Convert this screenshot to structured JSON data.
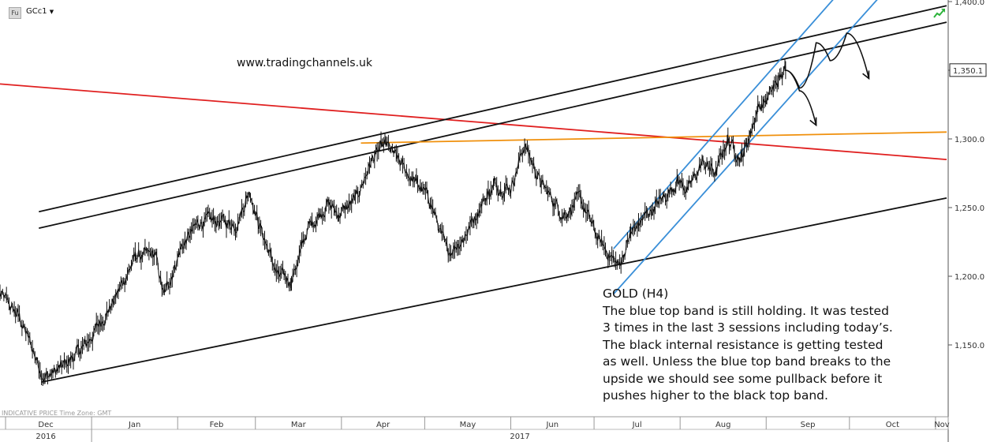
{
  "header": {
    "symbol_type": "Fu",
    "symbol": "GCc1",
    "symbol_menu_icon": "caret-down-icon",
    "status_icon": "green-arrow-icon"
  },
  "watermark": "www.tradingchannels.uk",
  "footer_note": "INDICATIVE PRICE   Time Zone: GMT",
  "annotation": {
    "title": "GOLD (H4)",
    "lines": [
      "The blue top band is still holding. It was tested",
      "3 times in the last 3 sessions including today’s.",
      "The black internal resistance is getting tested",
      "as well. Unless the blue top band breaks to the",
      "upside we should see some pullback before it",
      "pushes higher to the black top band."
    ]
  },
  "chart_data": {
    "type": "line",
    "title": "GOLD (H4)",
    "y_ticks": [
      "1,400.0",
      "1,350.0",
      "1,300.0",
      "1,250.0",
      "1,200.0",
      "1,150.0"
    ],
    "y_tick_values": [
      1400,
      1350,
      1300,
      1250,
      1200,
      1150
    ],
    "ylim": [
      1110,
      1410
    ],
    "last_price": 1350.1,
    "last_price_label": "1,350.1",
    "x_months": [
      "Dec",
      "Jan",
      "Feb",
      "Mar",
      "Apr",
      "May",
      "Jun",
      "Jul",
      "Aug",
      "Sep",
      "Oct",
      "Nov"
    ],
    "x_years": [
      "2016",
      "2017"
    ],
    "price_anchors": [
      [
        "2016-11-29",
        1187
      ],
      [
        "2016-12-06",
        1170
      ],
      [
        "2016-12-15",
        1126
      ],
      [
        "2016-12-21",
        1133
      ],
      [
        "2016-12-30",
        1150
      ],
      [
        "2017-01-09",
        1182
      ],
      [
        "2017-01-17",
        1215
      ],
      [
        "2017-01-24",
        1215
      ],
      [
        "2017-01-27",
        1185
      ],
      [
        "2017-02-02",
        1220
      ],
      [
        "2017-02-09",
        1240
      ],
      [
        "2017-02-16",
        1240
      ],
      [
        "2017-02-22",
        1238
      ],
      [
        "2017-02-27",
        1263
      ],
      [
        "2017-03-02",
        1240
      ],
      [
        "2017-03-09",
        1200
      ],
      [
        "2017-03-14",
        1197
      ],
      [
        "2017-03-20",
        1235
      ],
      [
        "2017-03-27",
        1253
      ],
      [
        "2017-03-31",
        1245
      ],
      [
        "2017-04-06",
        1255
      ],
      [
        "2017-04-12",
        1285
      ],
      [
        "2017-04-17",
        1296
      ],
      [
        "2017-04-24",
        1277
      ],
      [
        "2017-04-28",
        1268
      ],
      [
        "2017-05-03",
        1255
      ],
      [
        "2017-05-09",
        1217
      ],
      [
        "2017-05-15",
        1228
      ],
      [
        "2017-05-22",
        1255
      ],
      [
        "2017-05-26",
        1266
      ],
      [
        "2017-06-01",
        1265
      ],
      [
        "2017-06-06",
        1296
      ],
      [
        "2017-06-12",
        1267
      ],
      [
        "2017-06-20",
        1245
      ],
      [
        "2017-06-26",
        1256
      ],
      [
        "2017-07-03",
        1225
      ],
      [
        "2017-07-10",
        1207
      ],
      [
        "2017-07-14",
        1230
      ],
      [
        "2017-07-20",
        1245
      ],
      [
        "2017-07-26",
        1257
      ],
      [
        "2017-07-31",
        1270
      ],
      [
        "2017-08-04",
        1263
      ],
      [
        "2017-08-09",
        1283
      ],
      [
        "2017-08-14",
        1275
      ],
      [
        "2017-08-18",
        1300
      ],
      [
        "2017-08-23",
        1286
      ],
      [
        "2017-08-25",
        1296
      ],
      [
        "2017-08-29",
        1323
      ],
      [
        "2017-09-01",
        1328
      ],
      [
        "2017-09-04",
        1338
      ],
      [
        "2017-09-08",
        1350.1
      ]
    ],
    "trendlines": [
      {
        "name": "red-long-term-resistance",
        "color": "#e02020",
        "points": [
          [
            "2016-11-29",
            1340
          ],
          [
            "2017-11-05",
            1285
          ]
        ]
      },
      {
        "name": "black-top-band",
        "color": "#111111",
        "points": [
          [
            "2016-12-13",
            1247
          ],
          [
            "2017-11-05",
            1397
          ]
        ]
      },
      {
        "name": "black-internal-resistance",
        "color": "#111111",
        "points": [
          [
            "2016-12-13",
            1235
          ],
          [
            "2017-11-05",
            1385
          ]
        ]
      },
      {
        "name": "black-bottom-support",
        "color": "#111111",
        "points": [
          [
            "2016-12-14",
            1123
          ],
          [
            "2017-11-05",
            1257
          ]
        ]
      },
      {
        "name": "orange-horizontal",
        "color": "#f0900c",
        "points": [
          [
            "2017-04-08",
            1297
          ],
          [
            "2017-11-05",
            1305
          ]
        ]
      },
      {
        "name": "blue-top-band",
        "color": "#3a8fd8",
        "points": [
          [
            "2017-07-08",
            1220
          ],
          [
            "2017-10-01",
            1415
          ]
        ]
      },
      {
        "name": "blue-bottom-band",
        "color": "#3a8fd8",
        "points": [
          [
            "2017-07-08",
            1187
          ],
          [
            "2017-10-17",
            1415
          ]
        ]
      }
    ],
    "projections": [
      {
        "name": "pullback-projection",
        "color": "#111111",
        "points": [
          [
            "2017-09-08",
            1350
          ],
          [
            "2017-09-13",
            1335
          ],
          [
            "2017-09-19",
            1310
          ]
        ]
      },
      {
        "name": "bullish-projection",
        "color": "#111111",
        "points": [
          [
            "2017-09-08",
            1350
          ],
          [
            "2017-09-13",
            1337
          ],
          [
            "2017-09-19",
            1370
          ],
          [
            "2017-09-24",
            1357
          ],
          [
            "2017-09-30",
            1377
          ],
          [
            "2017-10-08",
            1344
          ]
        ]
      }
    ]
  }
}
